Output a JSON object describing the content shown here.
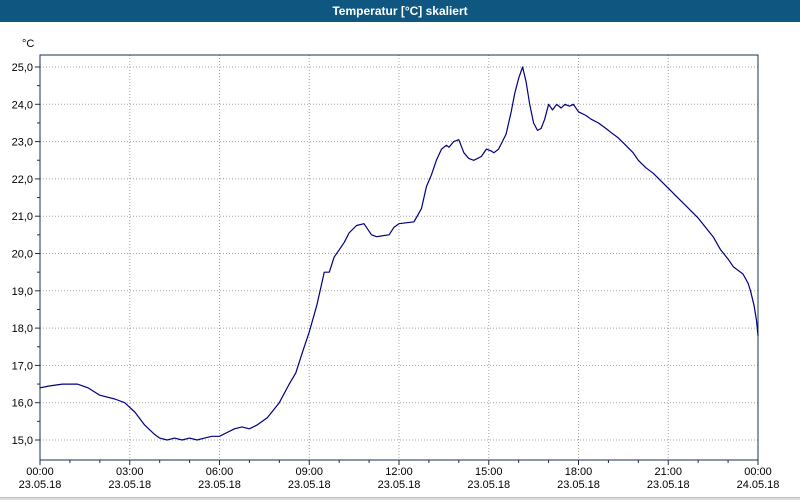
{
  "window": {
    "title": "Temperatur [°C] skaliert"
  },
  "colors": {
    "titlebar": "#0F5781",
    "titlebar_text": "#ffffff",
    "plot_background": "#ffffff",
    "axis": "#16304f",
    "grid": "#a0a0a0",
    "line": "#000080",
    "label_text": "#000000"
  },
  "chart_data": {
    "type": "line",
    "title": "Temperatur [°C] skaliert",
    "xlabel": "",
    "ylabel": "°C",
    "ylim": [
      15.0,
      25.0
    ],
    "xlim_hours": [
      0,
      24
    ],
    "grid": true,
    "legend_position": "none",
    "y_ticks": [
      {
        "value": 25.0,
        "label": "25,0"
      },
      {
        "value": 24.0,
        "label": "24,0"
      },
      {
        "value": 23.0,
        "label": "23,0"
      },
      {
        "value": 22.0,
        "label": "22,0"
      },
      {
        "value": 21.0,
        "label": "21,0"
      },
      {
        "value": 20.0,
        "label": "20,0"
      },
      {
        "value": 19.0,
        "label": "19,0"
      },
      {
        "value": 18.0,
        "label": "18,0"
      },
      {
        "value": 17.0,
        "label": "17,0"
      },
      {
        "value": 16.0,
        "label": "16,0"
      },
      {
        "value": 15.0,
        "label": "15,0"
      }
    ],
    "x_ticks": [
      {
        "hour": 0,
        "time": "00:00",
        "date": "23.05.18"
      },
      {
        "hour": 3,
        "time": "03:00",
        "date": "23.05.18"
      },
      {
        "hour": 6,
        "time": "06:00",
        "date": "23.05.18"
      },
      {
        "hour": 9,
        "time": "09:00",
        "date": "23.05.18"
      },
      {
        "hour": 12,
        "time": "12:00",
        "date": "23.05.18"
      },
      {
        "hour": 15,
        "time": "15:00",
        "date": "23.05.18"
      },
      {
        "hour": 18,
        "time": "18:00",
        "date": "23.05.18"
      },
      {
        "hour": 21,
        "time": "21:00",
        "date": "23.05.18"
      },
      {
        "hour": 24,
        "time": "00:00",
        "date": "24.05.18"
      }
    ],
    "series": [
      {
        "name": "Temperatur [°C]",
        "color": "#000080",
        "points": [
          [
            0,
            16.4
          ],
          [
            0.33,
            16.45
          ],
          [
            0.75,
            16.5
          ],
          [
            1.25,
            16.5
          ],
          [
            1.6,
            16.4
          ],
          [
            2.0,
            16.2
          ],
          [
            2.5,
            16.1
          ],
          [
            2.83,
            16.0
          ],
          [
            3.17,
            15.75
          ],
          [
            3.5,
            15.4
          ],
          [
            3.83,
            15.15
          ],
          [
            4.0,
            15.05
          ],
          [
            4.25,
            15.0
          ],
          [
            4.5,
            15.05
          ],
          [
            4.75,
            15.0
          ],
          [
            5.0,
            15.05
          ],
          [
            5.25,
            15.0
          ],
          [
            5.5,
            15.05
          ],
          [
            5.75,
            15.1
          ],
          [
            6.0,
            15.1
          ],
          [
            6.25,
            15.2
          ],
          [
            6.5,
            15.3
          ],
          [
            6.75,
            15.35
          ],
          [
            7.0,
            15.3
          ],
          [
            7.25,
            15.4
          ],
          [
            7.6,
            15.6
          ],
          [
            8.0,
            16.0
          ],
          [
            8.33,
            16.5
          ],
          [
            8.55,
            16.8
          ],
          [
            8.75,
            17.3
          ],
          [
            9.0,
            17.9
          ],
          [
            9.25,
            18.6
          ],
          [
            9.42,
            19.2
          ],
          [
            9.5,
            19.5
          ],
          [
            9.67,
            19.5
          ],
          [
            9.83,
            19.9
          ],
          [
            10.0,
            20.1
          ],
          [
            10.17,
            20.3
          ],
          [
            10.33,
            20.55
          ],
          [
            10.58,
            20.75
          ],
          [
            10.83,
            20.8
          ],
          [
            11.08,
            20.5
          ],
          [
            11.25,
            20.45
          ],
          [
            11.67,
            20.5
          ],
          [
            11.83,
            20.7
          ],
          [
            12.0,
            20.8
          ],
          [
            12.5,
            20.85
          ],
          [
            12.75,
            21.2
          ],
          [
            12.92,
            21.8
          ],
          [
            13.08,
            22.1
          ],
          [
            13.25,
            22.5
          ],
          [
            13.42,
            22.8
          ],
          [
            13.58,
            22.9
          ],
          [
            13.67,
            22.85
          ],
          [
            13.83,
            23.0
          ],
          [
            14.0,
            23.05
          ],
          [
            14.17,
            22.7
          ],
          [
            14.33,
            22.55
          ],
          [
            14.5,
            22.5
          ],
          [
            14.75,
            22.6
          ],
          [
            14.92,
            22.8
          ],
          [
            15.08,
            22.75
          ],
          [
            15.17,
            22.7
          ],
          [
            15.33,
            22.8
          ],
          [
            15.58,
            23.2
          ],
          [
            15.75,
            23.8
          ],
          [
            15.87,
            24.3
          ],
          [
            16.0,
            24.7
          ],
          [
            16.13,
            25.0
          ],
          [
            16.25,
            24.6
          ],
          [
            16.37,
            24.0
          ],
          [
            16.5,
            23.5
          ],
          [
            16.63,
            23.3
          ],
          [
            16.75,
            23.35
          ],
          [
            16.87,
            23.6
          ],
          [
            17.0,
            24.0
          ],
          [
            17.13,
            23.85
          ],
          [
            17.27,
            24.0
          ],
          [
            17.42,
            23.9
          ],
          [
            17.55,
            24.0
          ],
          [
            17.7,
            23.95
          ],
          [
            17.83,
            24.0
          ],
          [
            18.0,
            23.8
          ],
          [
            18.25,
            23.7
          ],
          [
            18.42,
            23.6
          ],
          [
            18.67,
            23.5
          ],
          [
            18.92,
            23.35
          ],
          [
            19.08,
            23.25
          ],
          [
            19.33,
            23.1
          ],
          [
            19.58,
            22.9
          ],
          [
            19.83,
            22.7
          ],
          [
            20.0,
            22.5
          ],
          [
            20.25,
            22.3
          ],
          [
            20.5,
            22.15
          ],
          [
            20.75,
            21.95
          ],
          [
            21.0,
            21.75
          ],
          [
            21.25,
            21.55
          ],
          [
            21.5,
            21.35
          ],
          [
            21.75,
            21.15
          ],
          [
            22.0,
            20.95
          ],
          [
            22.25,
            20.7
          ],
          [
            22.5,
            20.45
          ],
          [
            22.75,
            20.1
          ],
          [
            23.0,
            19.85
          ],
          [
            23.17,
            19.65
          ],
          [
            23.33,
            19.55
          ],
          [
            23.5,
            19.45
          ],
          [
            23.67,
            19.2
          ],
          [
            23.75,
            19.0
          ],
          [
            23.87,
            18.6
          ],
          [
            23.95,
            18.2
          ],
          [
            24.0,
            17.8
          ]
        ]
      }
    ]
  }
}
